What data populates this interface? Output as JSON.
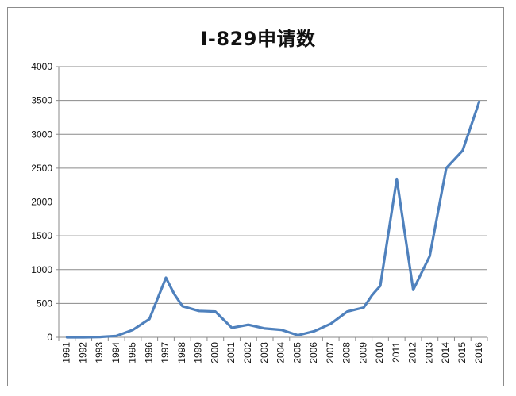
{
  "chart_data": {
    "type": "line",
    "title": "I-829申请数",
    "xlabel": "",
    "ylabel": "",
    "ylim": [
      0,
      4000
    ],
    "yticks": [
      0,
      500,
      1000,
      1500,
      2000,
      2500,
      3000,
      3500,
      4000
    ],
    "grid": true,
    "legend": "none",
    "series_color": "#4F81BD",
    "categories": [
      "1991",
      "1992",
      "1993",
      "1994",
      "1995",
      "1996",
      "1997",
      "1998",
      "1999",
      "2000",
      "2001",
      "2002",
      "2003",
      "2004",
      "2005",
      "2006",
      "2007",
      "2008",
      "2009",
      "2010",
      "2011",
      "2012",
      "2013",
      "2014",
      "2015",
      "2016"
    ],
    "points": [
      {
        "x": 1991.0,
        "y": 0
      },
      {
        "x": 1992.0,
        "y": 0
      },
      {
        "x": 1993.0,
        "y": 5
      },
      {
        "x": 1994.0,
        "y": 20
      },
      {
        "x": 1995.0,
        "y": 110
      },
      {
        "x": 1996.0,
        "y": 270
      },
      {
        "x": 1997.0,
        "y": 880
      },
      {
        "x": 1997.5,
        "y": 640
      },
      {
        "x": 1998.0,
        "y": 460
      },
      {
        "x": 1999.0,
        "y": 390
      },
      {
        "x": 2000.0,
        "y": 380
      },
      {
        "x": 2001.0,
        "y": 140
      },
      {
        "x": 2002.0,
        "y": 185
      },
      {
        "x": 2003.0,
        "y": 130
      },
      {
        "x": 2004.0,
        "y": 110
      },
      {
        "x": 2005.0,
        "y": 30
      },
      {
        "x": 2006.0,
        "y": 90
      },
      {
        "x": 2007.0,
        "y": 200
      },
      {
        "x": 2008.0,
        "y": 380
      },
      {
        "x": 2009.0,
        "y": 440
      },
      {
        "x": 2009.5,
        "y": 620
      },
      {
        "x": 2010.0,
        "y": 760
      },
      {
        "x": 2011.0,
        "y": 2340
      },
      {
        "x": 2012.0,
        "y": 700
      },
      {
        "x": 2013.0,
        "y": 1200
      },
      {
        "x": 2014.0,
        "y": 2500
      },
      {
        "x": 2015.0,
        "y": 2760
      },
      {
        "x": 2016.0,
        "y": 3480
      }
    ]
  }
}
